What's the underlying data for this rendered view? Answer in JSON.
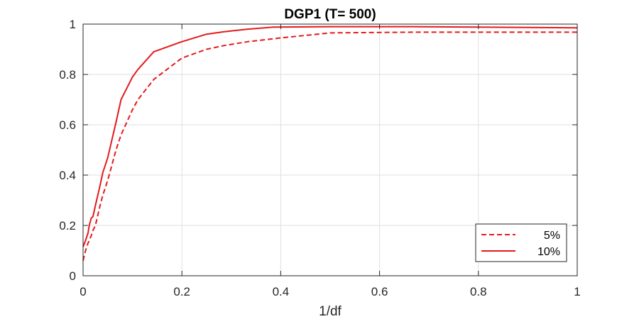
{
  "chart_data": {
    "type": "line",
    "title": "DGP1 (T= 500)",
    "xlabel": "1/df",
    "ylabel": "",
    "xlim": [
      0,
      1
    ],
    "ylim": [
      0,
      1
    ],
    "xticks": [
      0,
      0.2,
      0.4,
      0.6,
      0.8,
      1
    ],
    "yticks": [
      0,
      0.2,
      0.4,
      0.6,
      0.8,
      1
    ],
    "xtick_labels": [
      "0",
      "0.2",
      "0.4",
      "0.6",
      "0.8",
      "1"
    ],
    "ytick_labels": [
      "0",
      "0.2",
      "0.4",
      "0.6",
      "0.8",
      "1"
    ],
    "grid": true,
    "legend_position": "bottom-right",
    "series": [
      {
        "name": "5%",
        "style": "dashed",
        "color": "#e41a1c",
        "x": [
          0,
          0.005,
          0.01,
          0.0125,
          0.0167,
          0.02,
          0.025,
          0.0333,
          0.04,
          0.05,
          0.0667,
          0.0769,
          0.1,
          0.1111,
          0.1429,
          0.2,
          0.25,
          0.2857,
          0.3333,
          0.4,
          0.5,
          0.6667,
          1
        ],
        "y": [
          0.06,
          0.1,
          0.13,
          0.14,
          0.16,
          0.18,
          0.2,
          0.27,
          0.32,
          0.38,
          0.5,
          0.56,
          0.66,
          0.7,
          0.78,
          0.865,
          0.9,
          0.915,
          0.93,
          0.945,
          0.965,
          0.968,
          0.968
        ]
      },
      {
        "name": "10%",
        "style": "solid",
        "color": "#e41a1c",
        "x": [
          0,
          0.005,
          0.01,
          0.0125,
          0.0167,
          0.02,
          0.025,
          0.0333,
          0.04,
          0.05,
          0.0667,
          0.0769,
          0.1,
          0.1111,
          0.1429,
          0.2,
          0.25,
          0.2857,
          0.3333,
          0.3846,
          0.5,
          0.6667,
          1
        ],
        "y": [
          0.115,
          0.14,
          0.17,
          0.2,
          0.23,
          0.235,
          0.28,
          0.35,
          0.41,
          0.47,
          0.61,
          0.7,
          0.79,
          0.82,
          0.89,
          0.93,
          0.96,
          0.97,
          0.98,
          0.988,
          0.99,
          0.99,
          0.985
        ]
      }
    ]
  }
}
